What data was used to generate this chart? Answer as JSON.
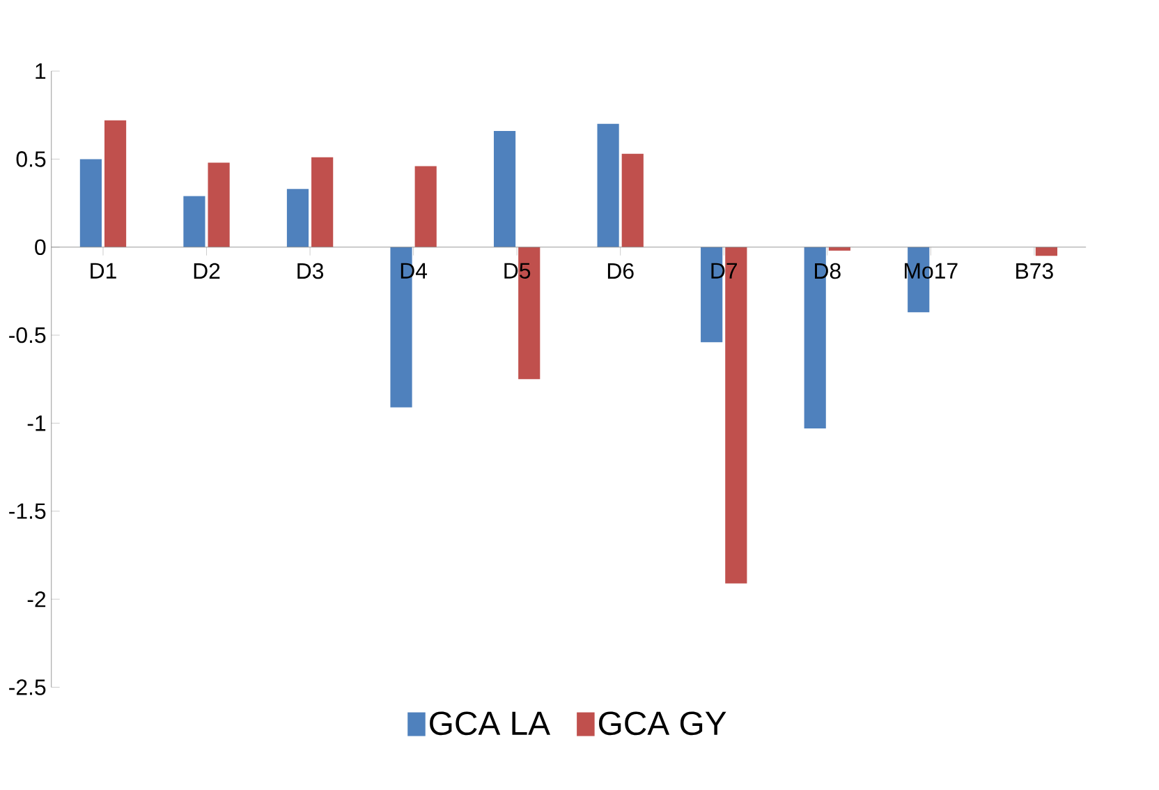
{
  "chart_data": {
    "type": "bar",
    "categories": [
      "D1",
      "D2",
      "D3",
      "D4",
      "D5",
      "D6",
      "D7",
      "D8",
      "Mo17",
      "B73"
    ],
    "series": [
      {
        "name": "GCA LA",
        "color": "#4f81bd",
        "values": [
          0.5,
          0.29,
          0.33,
          -0.91,
          0.66,
          0.7,
          -0.54,
          -1.03,
          -0.37,
          0
        ]
      },
      {
        "name": "GCA GY",
        "color": "#c0504d",
        "values": [
          0.72,
          0.48,
          0.51,
          0.46,
          -0.75,
          0.53,
          -1.91,
          -0.02,
          0,
          -0.05
        ]
      }
    ],
    "ylim": [
      -2.5,
      1
    ],
    "yticks": [
      -2.5,
      -2,
      -1.5,
      -1,
      -0.5,
      0,
      0.5,
      1
    ],
    "legend": "bottom",
    "grid": false
  }
}
